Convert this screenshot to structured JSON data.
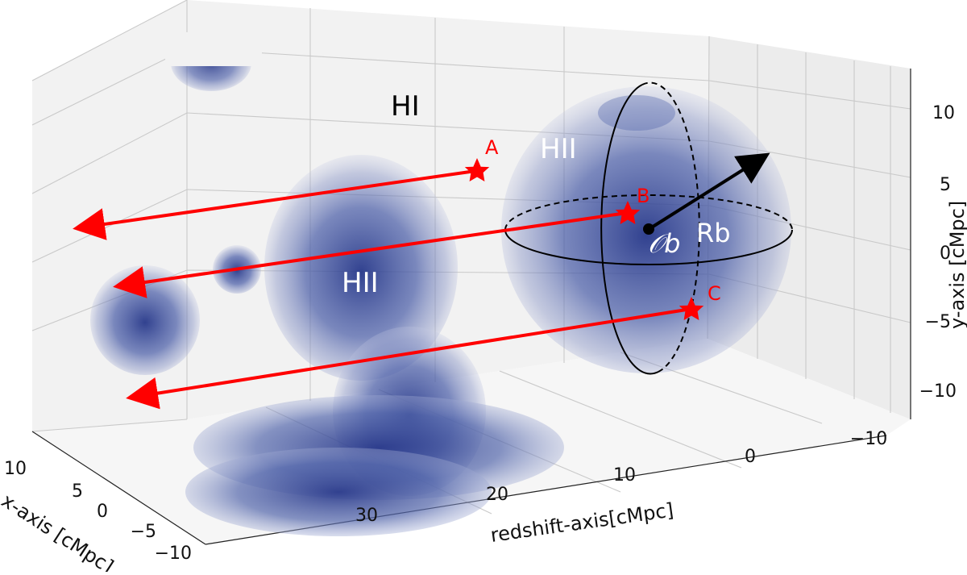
{
  "labels": {
    "neutral_region": "HI",
    "ionized_regions": [
      "HII",
      "HII"
    ],
    "bubble_center": "𝒪b",
    "bubble_radius": "Rb"
  },
  "sightlines": [
    {
      "point": "A"
    },
    {
      "point": "B"
    },
    {
      "point": "C"
    }
  ],
  "axes": {
    "x": {
      "label": "x-axis [cMpc]",
      "ticks": [
        "10",
        "5",
        "0",
        "−5",
        "−10"
      ]
    },
    "z": {
      "label": "redshift-axis[cMpc]",
      "ticks": [
        "30",
        "20",
        "10",
        "0",
        "−10"
      ]
    },
    "y": {
      "label": "y-axis [cMpc]",
      "ticks": [
        "10",
        "5",
        "0",
        "−5",
        "−10"
      ]
    }
  },
  "colors": {
    "bubble": "#2d3f8f",
    "sightline": "#ff0000",
    "grid": "#c9c9c9",
    "pane": "#f2f2f2"
  }
}
